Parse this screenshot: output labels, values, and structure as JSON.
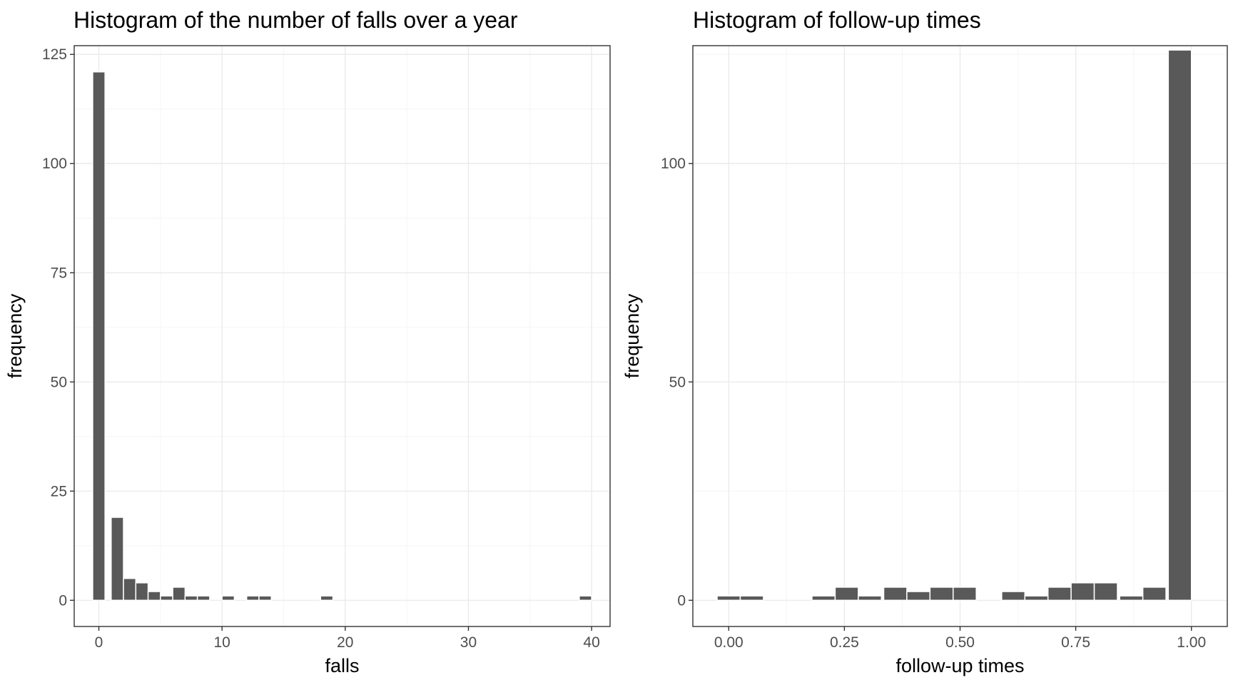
{
  "chart_data": [
    {
      "type": "bar",
      "title": "Histogram of the number of falls over a year",
      "xlabel": "falls",
      "ylabel": "frequency",
      "xlim": [
        -2,
        41.5
      ],
      "ylim": [
        -6,
        127
      ],
      "xticks": [
        0,
        10,
        20,
        30,
        40
      ],
      "yticks": [
        0,
        25,
        50,
        75,
        100,
        125
      ],
      "grid": true,
      "bin_width": 1,
      "bins": [
        {
          "x": 0,
          "count": 121
        },
        {
          "x": 1.5,
          "count": 19
        },
        {
          "x": 2.5,
          "count": 5
        },
        {
          "x": 3.5,
          "count": 4
        },
        {
          "x": 4.5,
          "count": 2
        },
        {
          "x": 5.5,
          "count": 1
        },
        {
          "x": 6.5,
          "count": 3
        },
        {
          "x": 7.5,
          "count": 1
        },
        {
          "x": 8.5,
          "count": 1
        },
        {
          "x": 10.5,
          "count": 1
        },
        {
          "x": 12.5,
          "count": 1
        },
        {
          "x": 13.5,
          "count": 1
        },
        {
          "x": 18.5,
          "count": 1
        },
        {
          "x": 39.5,
          "count": 1
        }
      ]
    },
    {
      "type": "bar",
      "title": "Histogram of follow-up times",
      "xlabel": "follow-up times",
      "ylabel": "frequency",
      "xlim": [
        -0.0775,
        1.0775
      ],
      "ylim": [
        -6,
        127
      ],
      "xticks": [
        0.0,
        0.25,
        0.5,
        0.75,
        1.0
      ],
      "xtick_labels": [
        "0.00",
        "0.25",
        "0.50",
        "0.75",
        "1.00"
      ],
      "yticks": [
        0,
        50,
        100
      ],
      "grid": true,
      "bin_width": 0.05,
      "bins": [
        {
          "x": 0.0,
          "count": 1
        },
        {
          "x": 0.05,
          "count": 1
        },
        {
          "x": 0.205,
          "count": 1
        },
        {
          "x": 0.255,
          "count": 3
        },
        {
          "x": 0.305,
          "count": 1
        },
        {
          "x": 0.36,
          "count": 3
        },
        {
          "x": 0.41,
          "count": 2
        },
        {
          "x": 0.46,
          "count": 3
        },
        {
          "x": 0.51,
          "count": 3
        },
        {
          "x": 0.615,
          "count": 2
        },
        {
          "x": 0.665,
          "count": 1
        },
        {
          "x": 0.715,
          "count": 3
        },
        {
          "x": 0.765,
          "count": 4
        },
        {
          "x": 0.815,
          "count": 4
        },
        {
          "x": 0.87,
          "count": 1
        },
        {
          "x": 0.92,
          "count": 3
        },
        {
          "x": 0.975,
          "count": 126
        }
      ]
    }
  ],
  "colors": {
    "bar": "#595959",
    "grid_major": "#ebebeb",
    "grid_minor": "#f5f5f5",
    "axis_text": "#4d4d4d",
    "panel_border": "#333333"
  }
}
